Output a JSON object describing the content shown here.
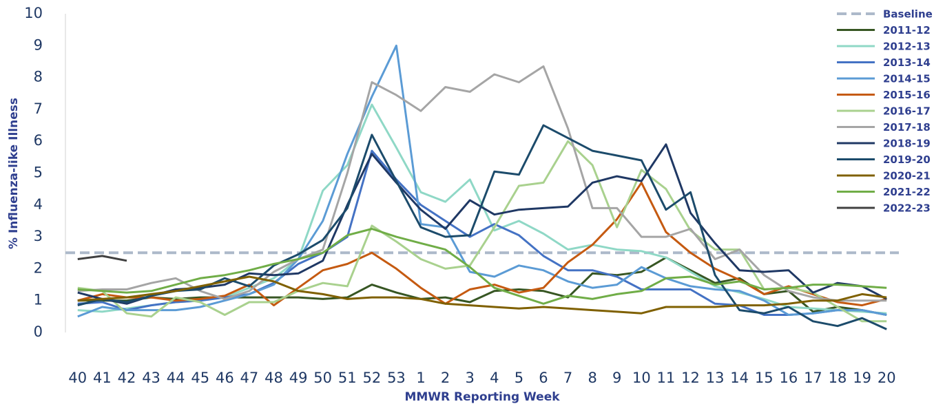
{
  "chart_data": {
    "type": "line",
    "y_label": "% Influenza-like Illness",
    "x_label": "MMWR Reporting Week",
    "categories": [
      "40",
      "41",
      "42",
      "43",
      "44",
      "45",
      "46",
      "47",
      "48",
      "49",
      "50",
      "51",
      "52",
      "53",
      "1",
      "2",
      "3",
      "4",
      "5",
      "6",
      "7",
      "8",
      "9",
      "10",
      "11",
      "12",
      "13",
      "14",
      "15",
      "16",
      "17",
      "18",
      "19",
      "20"
    ],
    "ylim": [
      0,
      10
    ],
    "yticks": [
      0,
      1,
      2,
      3,
      4,
      5,
      6,
      7,
      8,
      9,
      10
    ],
    "grid": false,
    "legend": "top-right",
    "baseline": {
      "name": "Baseline",
      "value": 2.5,
      "color": "#adb9ca"
    },
    "series": [
      {
        "name": "2011-12",
        "color": "#375623",
        "values": [
          1.0,
          1.0,
          1.0,
          1.1,
          1.05,
          1.1,
          1.1,
          1.1,
          1.1,
          1.1,
          1.05,
          1.1,
          1.5,
          1.25,
          1.05,
          1.1,
          0.95,
          1.3,
          1.35,
          1.3,
          1.1,
          1.85,
          1.8,
          1.9,
          2.35,
          1.95,
          1.55,
          1.7,
          1.2,
          1.3,
          0.65,
          0.8,
          0.7,
          0.55
        ]
      },
      {
        "name": "2012-13",
        "color": "#8fd8c6",
        "values": [
          0.7,
          0.65,
          0.75,
          0.85,
          0.95,
          1.0,
          1.1,
          1.4,
          1.7,
          2.3,
          4.45,
          5.25,
          7.15,
          5.8,
          4.4,
          4.1,
          4.8,
          3.2,
          3.5,
          3.1,
          2.6,
          2.75,
          2.6,
          2.55,
          2.35,
          1.9,
          1.45,
          1.25,
          1.05,
          0.8,
          0.75,
          0.7,
          0.65,
          0.6
        ]
      },
      {
        "name": "2013-14",
        "color": "#4472c4",
        "values": [
          0.9,
          0.95,
          0.7,
          0.85,
          0.95,
          1.0,
          1.1,
          1.2,
          1.55,
          2.15,
          2.5,
          3.0,
          5.7,
          4.8,
          4.0,
          3.5,
          3.0,
          3.4,
          3.05,
          2.4,
          1.95,
          1.95,
          1.75,
          1.35,
          1.35,
          1.35,
          0.9,
          0.85,
          0.55,
          0.55,
          0.6,
          0.7,
          0.7,
          0.55
        ]
      },
      {
        "name": "2014-15",
        "color": "#5b9bd5",
        "values": [
          0.5,
          0.8,
          0.7,
          0.7,
          0.7,
          0.8,
          1.0,
          1.2,
          1.5,
          2.3,
          3.5,
          5.6,
          7.4,
          9.0,
          3.4,
          3.3,
          1.9,
          1.75,
          2.1,
          1.95,
          1.6,
          1.4,
          1.5,
          2.05,
          1.7,
          1.45,
          1.35,
          1.3,
          1.0,
          0.55,
          0.6,
          0.7,
          0.7,
          0.55
        ]
      },
      {
        "name": "2015-16",
        "color": "#c55a11",
        "values": [
          1.0,
          1.2,
          1.1,
          1.1,
          1.0,
          1.05,
          1.15,
          1.5,
          0.85,
          1.4,
          1.95,
          2.15,
          2.5,
          2.0,
          1.4,
          0.9,
          1.35,
          1.5,
          1.25,
          1.4,
          2.2,
          2.75,
          3.55,
          4.7,
          3.15,
          2.5,
          2.0,
          1.65,
          1.2,
          1.45,
          1.2,
          0.95,
          0.85,
          1.05
        ]
      },
      {
        "name": "2016-17",
        "color": "#a9d18e",
        "values": [
          1.4,
          1.3,
          0.6,
          0.5,
          1.1,
          0.95,
          0.55,
          0.95,
          0.95,
          1.3,
          1.55,
          1.45,
          3.35,
          2.85,
          2.3,
          2.0,
          2.1,
          3.3,
          4.6,
          4.7,
          6.0,
          5.25,
          3.3,
          5.1,
          4.5,
          3.2,
          2.6,
          2.6,
          1.35,
          1.4,
          1.25,
          0.8,
          0.35,
          0.35
        ]
      },
      {
        "name": "2017-18",
        "color": "#a5a5a5",
        "values": [
          1.3,
          1.35,
          1.35,
          1.55,
          1.7,
          1.3,
          1.05,
          1.3,
          1.9,
          2.3,
          2.6,
          5.0,
          7.85,
          7.45,
          6.95,
          7.7,
          7.55,
          8.1,
          7.85,
          8.35,
          6.4,
          3.9,
          3.9,
          3.0,
          3.0,
          3.25,
          2.3,
          2.6,
          1.8,
          1.3,
          1.1,
          1.0,
          1.0,
          1.0
        ]
      },
      {
        "name": "2018-19",
        "color": "#1f3864",
        "values": [
          1.25,
          1.05,
          0.9,
          1.15,
          1.35,
          1.4,
          1.5,
          1.85,
          1.8,
          1.85,
          2.25,
          4.0,
          5.6,
          4.7,
          3.85,
          3.25,
          4.15,
          3.7,
          3.85,
          3.9,
          3.95,
          4.7,
          4.9,
          4.75,
          5.9,
          3.75,
          2.8,
          1.95,
          1.9,
          1.95,
          1.25,
          1.55,
          1.45,
          1.05
        ]
      },
      {
        "name": "2019-20",
        "color": "#1c4b6b",
        "values": [
          0.85,
          1.05,
          0.95,
          1.15,
          1.3,
          1.35,
          1.7,
          1.45,
          2.1,
          2.45,
          2.9,
          3.9,
          6.2,
          4.75,
          3.3,
          3.0,
          3.05,
          5.05,
          4.95,
          6.5,
          6.1,
          5.7,
          5.55,
          5.4,
          3.85,
          4.4,
          1.8,
          0.7,
          0.6,
          0.8,
          0.35,
          0.2,
          0.45,
          0.1
        ]
      },
      {
        "name": "2020-21",
        "color": "#7f6000",
        "values": [
          1.0,
          1.05,
          1.1,
          1.2,
          1.3,
          1.45,
          1.6,
          1.75,
          1.6,
          1.3,
          1.2,
          1.05,
          1.1,
          1.1,
          1.05,
          0.9,
          0.85,
          0.8,
          0.75,
          0.8,
          0.75,
          0.7,
          0.65,
          0.6,
          0.8,
          0.8,
          0.8,
          0.85,
          0.85,
          0.9,
          1.0,
          1.0,
          1.2,
          1.1
        ]
      },
      {
        "name": "2021-22",
        "color": "#70ad47",
        "values": [
          1.35,
          1.3,
          1.25,
          1.3,
          1.5,
          1.7,
          1.8,
          1.95,
          2.15,
          2.3,
          2.5,
          3.05,
          3.25,
          3.0,
          2.8,
          2.6,
          2.05,
          1.4,
          1.15,
          0.9,
          1.15,
          1.05,
          1.2,
          1.3,
          1.7,
          1.75,
          1.5,
          1.6,
          1.35,
          1.4,
          1.5,
          1.5,
          1.45,
          1.4
        ]
      },
      {
        "name": "2022-23",
        "color": "#404040",
        "values": [
          2.3,
          2.4,
          2.25,
          null,
          null,
          null,
          null,
          null,
          null,
          null,
          null,
          null,
          null,
          null,
          null,
          null,
          null,
          null,
          null,
          null,
          null,
          null,
          null,
          null,
          null,
          null,
          null,
          null,
          null,
          null,
          null,
          null,
          null,
          null
        ]
      }
    ]
  }
}
